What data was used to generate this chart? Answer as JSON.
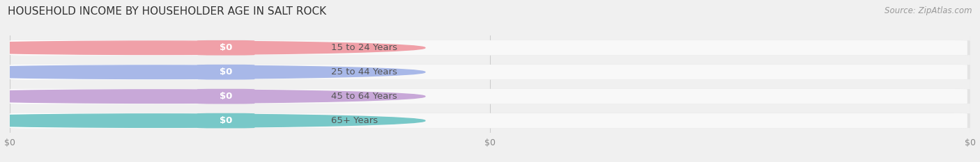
{
  "title": "HOUSEHOLD INCOME BY HOUSEHOLDER AGE IN SALT ROCK",
  "source": "Source: ZipAtlas.com",
  "categories": [
    "15 to 24 Years",
    "25 to 44 Years",
    "45 to 64 Years",
    "65+ Years"
  ],
  "values": [
    0,
    0,
    0,
    0
  ],
  "bar_colors": [
    "#f0a0a8",
    "#a8b8e8",
    "#c8a8d8",
    "#78c8c8"
  ],
  "background_color": "#f0f0f0",
  "bar_bg_color": "#e4e4e4",
  "bar_bg_inner_color": "#f8f8f8",
  "title_fontsize": 11,
  "source_fontsize": 8.5,
  "label_fontsize": 9.5,
  "value_fontsize": 9.5,
  "tick_fontsize": 9,
  "xticks": [
    0,
    0.5,
    1.0
  ],
  "xtick_labels": [
    "$0",
    "$0",
    "$0"
  ],
  "bar_height": 0.62,
  "grid_color": "#cccccc",
  "label_color": "#555555",
  "tick_color": "#888888"
}
